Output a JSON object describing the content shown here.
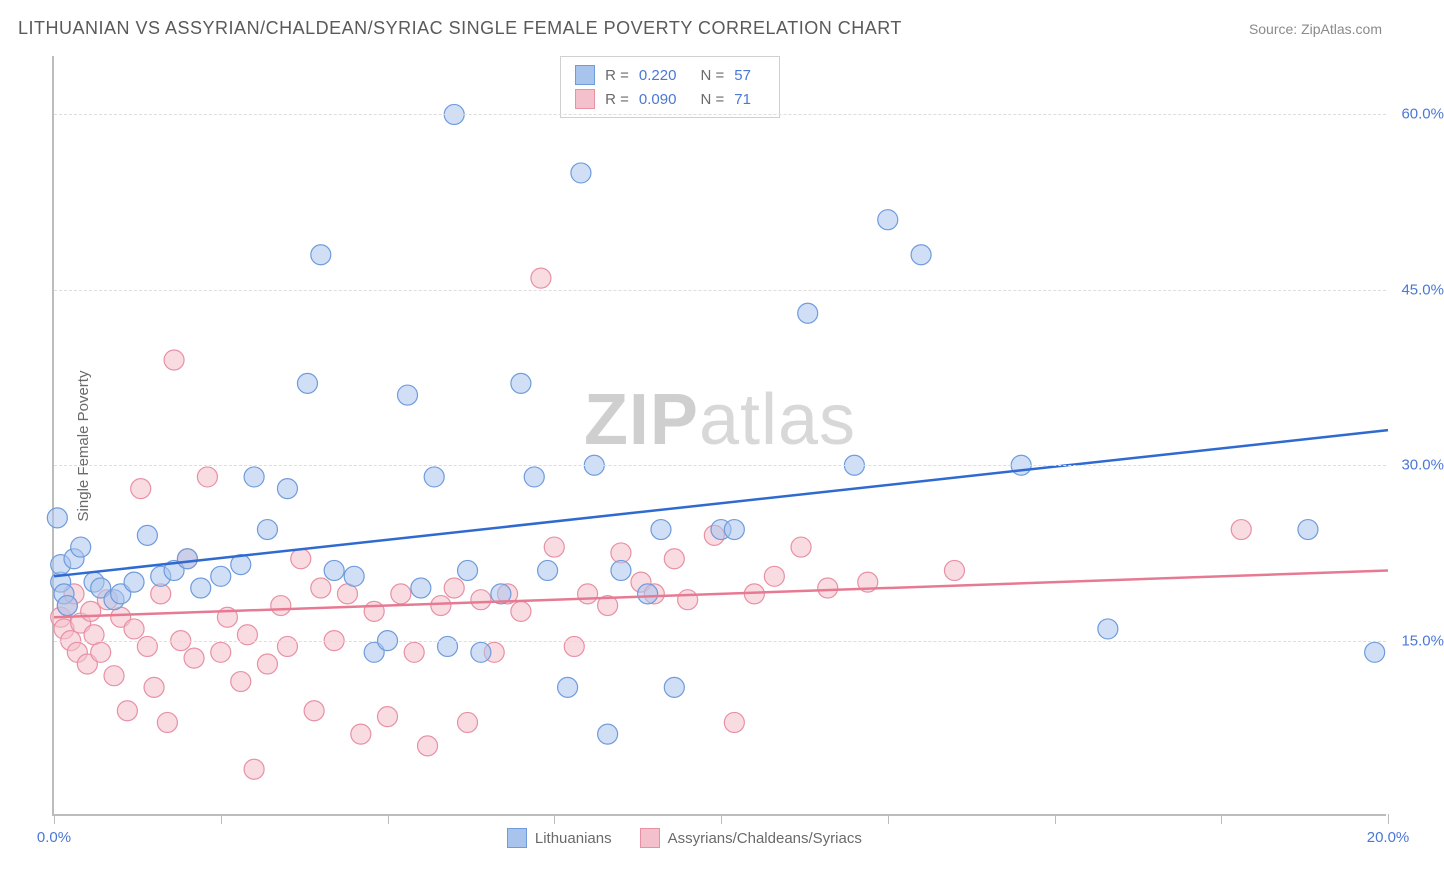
{
  "header": {
    "title": "LITHUANIAN VS ASSYRIAN/CHALDEAN/SYRIAC SINGLE FEMALE POVERTY CORRELATION CHART",
    "source": "Source: ZipAtlas.com"
  },
  "watermark": {
    "bold": "ZIP",
    "rest": "atlas"
  },
  "chart": {
    "type": "scatter",
    "ylabel": "Single Female Poverty",
    "background_color": "#ffffff",
    "grid_color": "#dddddd",
    "axis_color": "#bcbcbc",
    "tick_label_color": "#4a78d6",
    "axis_label_color": "#6a6a6a",
    "label_fontsize": 15,
    "title_fontsize": 18,
    "xlim": [
      0,
      20
    ],
    "ylim": [
      0,
      65
    ],
    "yticks": [
      15,
      30,
      45,
      60
    ],
    "ytick_labels": [
      "15.0%",
      "30.0%",
      "45.0%",
      "60.0%"
    ],
    "xticks": [
      0,
      2.5,
      5,
      7.5,
      10,
      12.5,
      15,
      17.5,
      20
    ],
    "xtick_labels": {
      "0": "0.0%",
      "20": "20.0%"
    },
    "marker_radius": 10,
    "marker_opacity": 0.55,
    "marker_stroke_width": 1.2,
    "trend_line_width": 2.5,
    "series": [
      {
        "name": "Lithuanians",
        "fill": "#a9c4ec",
        "stroke": "#6f9bdc",
        "line_color": "#2f6ad0",
        "R": "0.220",
        "N": "57",
        "trend": {
          "x1": 0,
          "y1": 20.5,
          "x2": 20,
          "y2": 33.0
        },
        "points": [
          [
            0.05,
            25.5
          ],
          [
            0.1,
            20
          ],
          [
            0.1,
            21.5
          ],
          [
            0.15,
            19
          ],
          [
            0.2,
            18
          ],
          [
            0.3,
            22
          ],
          [
            0.4,
            23
          ],
          [
            0.6,
            20
          ],
          [
            0.7,
            19.5
          ],
          [
            0.9,
            18.5
          ],
          [
            1.0,
            19
          ],
          [
            1.2,
            20
          ],
          [
            1.4,
            24
          ],
          [
            1.6,
            20.5
          ],
          [
            1.8,
            21
          ],
          [
            2.0,
            22
          ],
          [
            2.2,
            19.5
          ],
          [
            2.5,
            20.5
          ],
          [
            2.8,
            21.5
          ],
          [
            3.0,
            29
          ],
          [
            3.2,
            24.5
          ],
          [
            3.5,
            28
          ],
          [
            3.8,
            37
          ],
          [
            4.0,
            48
          ],
          [
            4.2,
            21
          ],
          [
            4.5,
            20.5
          ],
          [
            4.8,
            14
          ],
          [
            5.0,
            15
          ],
          [
            5.3,
            36
          ],
          [
            5.5,
            19.5
          ],
          [
            5.7,
            29
          ],
          [
            5.9,
            14.5
          ],
          [
            6.0,
            60
          ],
          [
            6.2,
            21
          ],
          [
            6.4,
            14
          ],
          [
            6.7,
            19
          ],
          [
            7.0,
            37
          ],
          [
            7.2,
            29
          ],
          [
            7.4,
            21
          ],
          [
            7.7,
            11
          ],
          [
            7.9,
            55
          ],
          [
            8.1,
            30
          ],
          [
            8.3,
            7
          ],
          [
            8.5,
            21
          ],
          [
            8.9,
            19
          ],
          [
            9.1,
            24.5
          ],
          [
            9.3,
            11
          ],
          [
            10.0,
            24.5
          ],
          [
            10.2,
            24.5
          ],
          [
            11.3,
            43
          ],
          [
            12.0,
            30
          ],
          [
            12.5,
            51
          ],
          [
            13.0,
            48
          ],
          [
            14.5,
            30
          ],
          [
            15.8,
            16
          ],
          [
            18.8,
            24.5
          ],
          [
            19.8,
            14
          ]
        ]
      },
      {
        "name": "Assyrians/Chaldeans/Syriacs",
        "fill": "#f4c0cb",
        "stroke": "#e890a4",
        "line_color": "#e77a93",
        "R": "0.090",
        "N": "71",
        "trend": {
          "x1": 0,
          "y1": 17.0,
          "x2": 20,
          "y2": 21.0
        },
        "points": [
          [
            0.1,
            17
          ],
          [
            0.15,
            16
          ],
          [
            0.2,
            18
          ],
          [
            0.25,
            15
          ],
          [
            0.3,
            19
          ],
          [
            0.35,
            14
          ],
          [
            0.4,
            16.5
          ],
          [
            0.5,
            13
          ],
          [
            0.55,
            17.5
          ],
          [
            0.6,
            15.5
          ],
          [
            0.7,
            14
          ],
          [
            0.8,
            18.5
          ],
          [
            0.9,
            12
          ],
          [
            1.0,
            17
          ],
          [
            1.1,
            9
          ],
          [
            1.2,
            16
          ],
          [
            1.3,
            28
          ],
          [
            1.4,
            14.5
          ],
          [
            1.5,
            11
          ],
          [
            1.6,
            19
          ],
          [
            1.7,
            8
          ],
          [
            1.8,
            39
          ],
          [
            1.9,
            15
          ],
          [
            2.0,
            22
          ],
          [
            2.1,
            13.5
          ],
          [
            2.3,
            29
          ],
          [
            2.5,
            14
          ],
          [
            2.6,
            17
          ],
          [
            2.8,
            11.5
          ],
          [
            2.9,
            15.5
          ],
          [
            3.0,
            4
          ],
          [
            3.2,
            13
          ],
          [
            3.4,
            18
          ],
          [
            3.5,
            14.5
          ],
          [
            3.7,
            22
          ],
          [
            3.9,
            9
          ],
          [
            4.0,
            19.5
          ],
          [
            4.2,
            15
          ],
          [
            4.4,
            19
          ],
          [
            4.6,
            7
          ],
          [
            4.8,
            17.5
          ],
          [
            5.0,
            8.5
          ],
          [
            5.2,
            19
          ],
          [
            5.4,
            14
          ],
          [
            5.6,
            6
          ],
          [
            5.8,
            18
          ],
          [
            6.0,
            19.5
          ],
          [
            6.2,
            8
          ],
          [
            6.4,
            18.5
          ],
          [
            6.6,
            14
          ],
          [
            6.8,
            19
          ],
          [
            7.0,
            17.5
          ],
          [
            7.3,
            46
          ],
          [
            7.5,
            23
          ],
          [
            7.8,
            14.5
          ],
          [
            8.0,
            19
          ],
          [
            8.3,
            18
          ],
          [
            8.5,
            22.5
          ],
          [
            8.8,
            20
          ],
          [
            9.0,
            19
          ],
          [
            9.3,
            22
          ],
          [
            9.5,
            18.5
          ],
          [
            9.9,
            24
          ],
          [
            10.2,
            8
          ],
          [
            10.5,
            19
          ],
          [
            10.8,
            20.5
          ],
          [
            11.2,
            23
          ],
          [
            11.6,
            19.5
          ],
          [
            12.2,
            20
          ],
          [
            13.5,
            21
          ],
          [
            17.8,
            24.5
          ]
        ]
      }
    ]
  },
  "legend": {
    "items": [
      {
        "label": "Lithuanians",
        "fill": "#a9c4ec",
        "stroke": "#6f9bdc"
      },
      {
        "label": "Assyrians/Chaldeans/Syriacs",
        "fill": "#f4c0cb",
        "stroke": "#e890a4"
      }
    ]
  }
}
